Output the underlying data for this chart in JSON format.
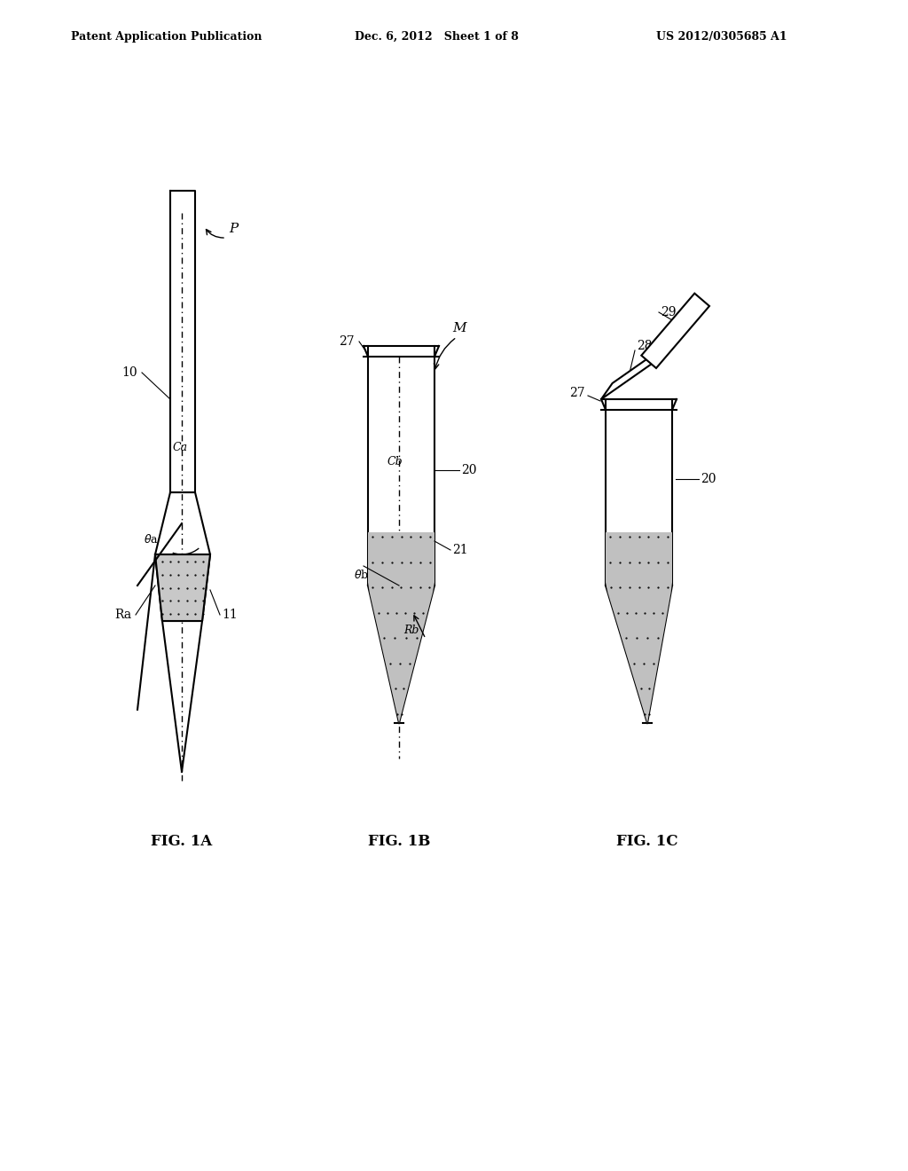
{
  "bg_color": "#ffffff",
  "header_left": "Patent Application Publication",
  "header_mid": "Dec. 6, 2012   Sheet 1 of 8",
  "header_right": "US 2012/0305685 A1",
  "fig1a_label": "FIG. 1A",
  "fig1b_label": "FIG. 1B",
  "fig1c_label": "FIG. 1C",
  "line_color": "#000000",
  "fill_color": "#cccccc",
  "hatching": "....."
}
